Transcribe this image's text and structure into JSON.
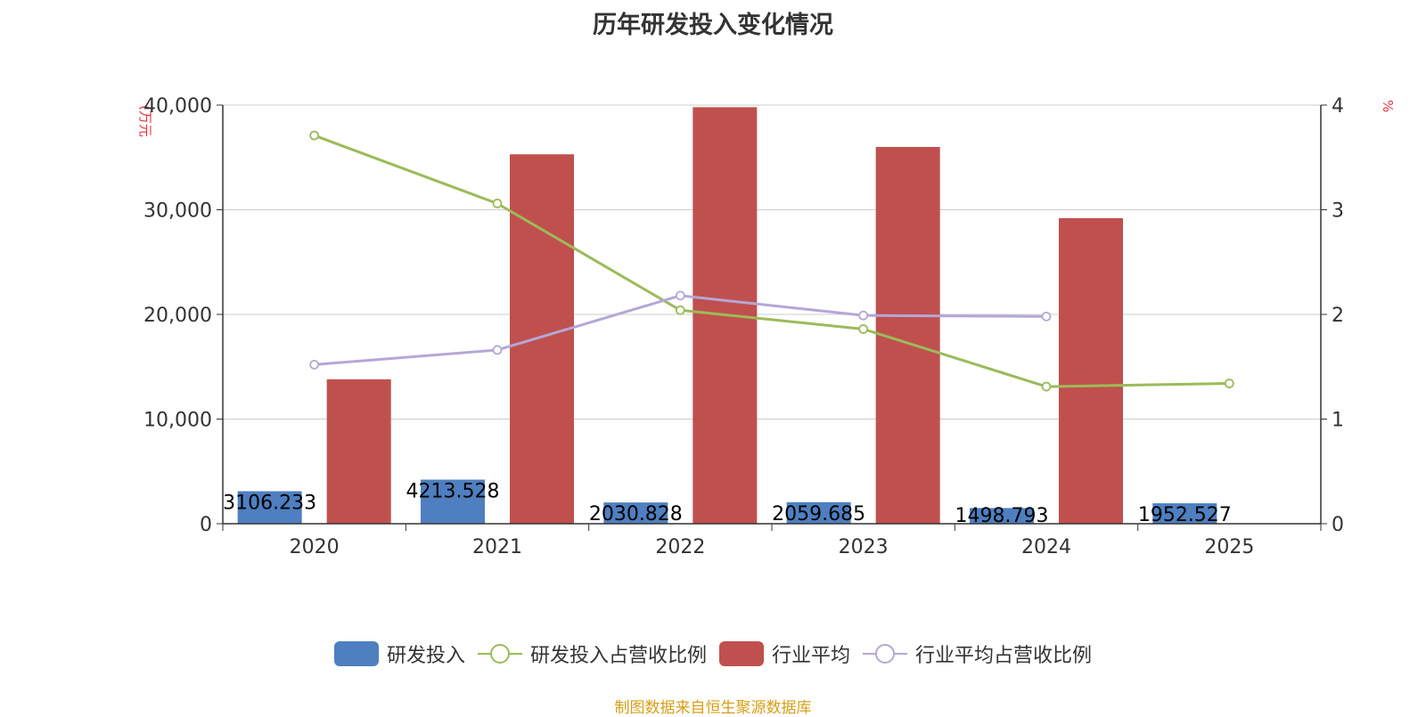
{
  "colors": {
    "rd_investment": "#4e7fc0",
    "rd_ratio": "#9bbb59",
    "industry_avg": "#c0504d",
    "industry_ratio": "#b4a7d6",
    "unit_label": "#e5323e",
    "source": "#d4a017"
  },
  "chart_data": {
    "type": "bar",
    "title": "历年研发投入变化情况",
    "categories": [
      "2020",
      "2021",
      "2022",
      "2023",
      "2024",
      "2025"
    ],
    "y_left": {
      "unit": "(万元",
      "ylim": [
        0,
        40000
      ],
      "ticks": [
        "0",
        "10,000",
        "20,000",
        "30,000",
        "40,000"
      ]
    },
    "y_right": {
      "unit": "%",
      "ylim": [
        0,
        4
      ],
      "ticks": [
        "0",
        "1",
        "2",
        "3",
        "4"
      ]
    },
    "grid": true,
    "legend_position": "bottom",
    "series": [
      {
        "name": "研发投入",
        "kind": "bar",
        "axis": "left",
        "values": [
          3106.233,
          4213.528,
          2030.828,
          2059.685,
          1498.793,
          1952.527
        ],
        "labels": [
          "3106.233",
          "4213.528",
          "2030.828",
          "2059.685",
          "1498.793",
          "1952.527"
        ]
      },
      {
        "name": "研发投入占营收比例",
        "kind": "line",
        "axis": "right",
        "values": [
          3.71,
          3.06,
          2.04,
          1.86,
          1.31,
          1.34
        ]
      },
      {
        "name": "行业平均",
        "kind": "bar",
        "axis": "left",
        "values": [
          13800,
          35300,
          39800,
          36000,
          29200,
          null
        ]
      },
      {
        "name": "行业平均占营收比例",
        "kind": "line",
        "axis": "right",
        "values": [
          1.52,
          1.66,
          2.18,
          1.99,
          1.98,
          null
        ]
      }
    ]
  },
  "legend": {
    "items": [
      {
        "label": "研发投入",
        "type": "bar",
        "color": "#4e7fc0"
      },
      {
        "label": "研发投入占营收比例",
        "type": "line",
        "color": "#9bbb59"
      },
      {
        "label": "行业平均",
        "type": "bar",
        "color": "#c0504d"
      },
      {
        "label": "行业平均占营收比例",
        "type": "line",
        "color": "#b4a7d6"
      }
    ]
  },
  "source": "制图数据来自恒生聚源数据库"
}
